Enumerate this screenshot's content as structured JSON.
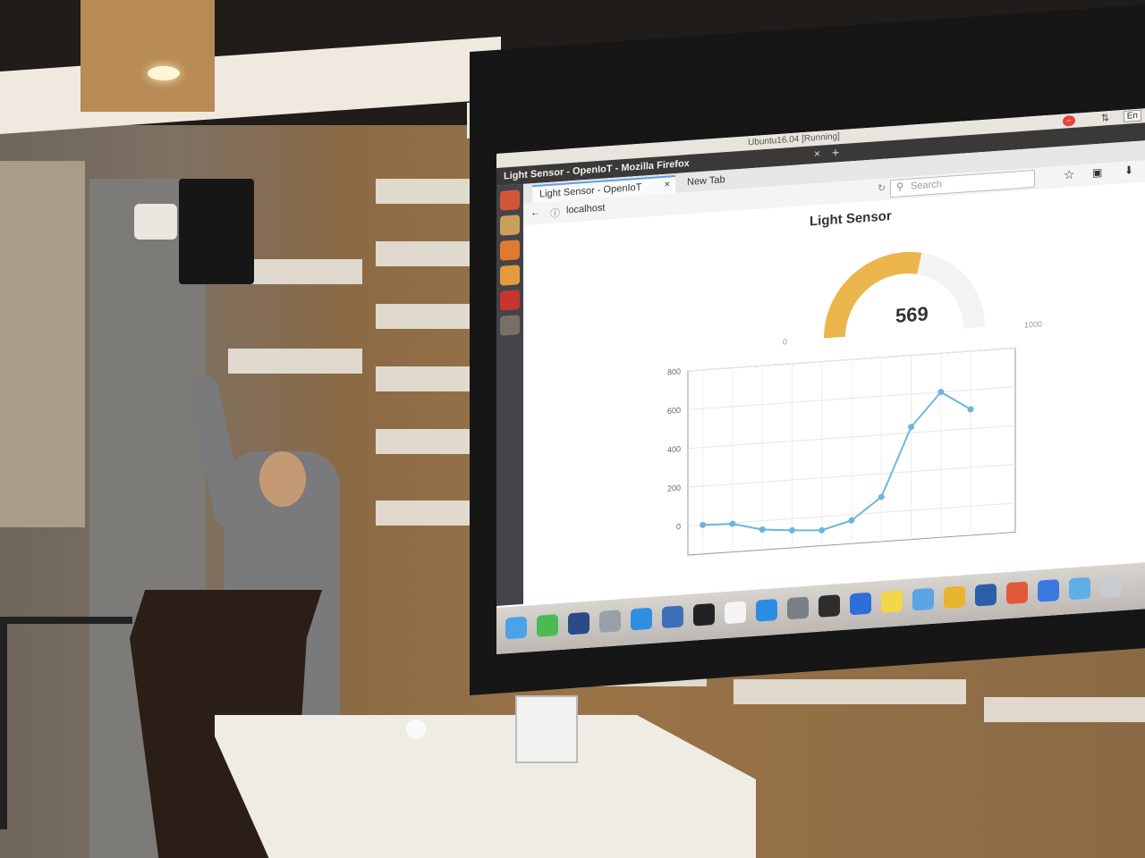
{
  "vm_window": {
    "title": "Ubuntu16.04 [Running]",
    "close_glyph": "–",
    "network_glyph": "⇅",
    "keyboard_layout": "En"
  },
  "firefox": {
    "window_title": "Light Sensor - OpenIoT - Mozilla Firefox",
    "close_glyph": "×",
    "new_tab_glyph": "+",
    "tabs": [
      {
        "label": "Light Sensor - OpenIoT",
        "close_glyph": "×"
      },
      {
        "label": "New Tab"
      }
    ],
    "back_glyph": "←",
    "info_glyph": "ⓘ",
    "url": "localhost",
    "reload_glyph": "↻",
    "search_glyph": "⚲",
    "search_placeholder": "Search",
    "bookmark_glyph": "☆",
    "library_glyph": "▣",
    "download_glyph": "⬇"
  },
  "launcher": {
    "items": [
      "dash-icon",
      "files-icon",
      "firefox-icon",
      "software-icon",
      "settings-icon",
      "terminal-icon"
    ],
    "colors": [
      "#d2553a",
      "#c9a05a",
      "#e07a2e",
      "#e59b3b",
      "#c8352b",
      "#777066"
    ]
  },
  "gauge": {
    "title": "Light Sensor",
    "value": 569,
    "min": 0,
    "max": 1000,
    "fill_color": "#ecb54b"
  },
  "chart_data": {
    "type": "line",
    "title": "",
    "x": [
      1,
      2,
      3,
      4,
      5,
      6,
      7,
      8,
      9,
      10
    ],
    "series": [
      {
        "values": [
          0,
          -5,
          -45,
          -60,
          -70,
          -30,
          80,
          430,
          600,
          500
        ]
      }
    ],
    "yticks": [
      800,
      600,
      400,
      200,
      0
    ],
    "ylim": [
      -150,
      800
    ],
    "grid": true,
    "line_color": "#6ab6dc"
  },
  "dock": {
    "icons": [
      "finder-icon",
      "wechat-icon",
      "photoshop-icon",
      "launchpad-icon",
      "safari-icon",
      "screen-icon",
      "qq-icon",
      "calendar-icon",
      "appstore-icon",
      "preferences-icon",
      "terminal-icon",
      "keynote-icon",
      "notes-icon",
      "folder-icon",
      "chrome-icon",
      "virtualbox-icon",
      "xmind-icon",
      "mail-icon",
      "finder2-icon",
      "trash-icon"
    ],
    "colors": [
      "#4aa3e8",
      "#4cba52",
      "#2b4a86",
      "#9aa0a8",
      "#2f8ee0",
      "#3b6fb8",
      "#222222",
      "#f4f4f4",
      "#2c8de6",
      "#7a7f86",
      "#2d2d2d",
      "#2e6ed8",
      "#f3d64a",
      "#5ba4e6",
      "#e9b530",
      "#2a5fa8",
      "#e05a3a",
      "#3a7ae0",
      "#5dafe8",
      "#c8ccd0"
    ]
  }
}
